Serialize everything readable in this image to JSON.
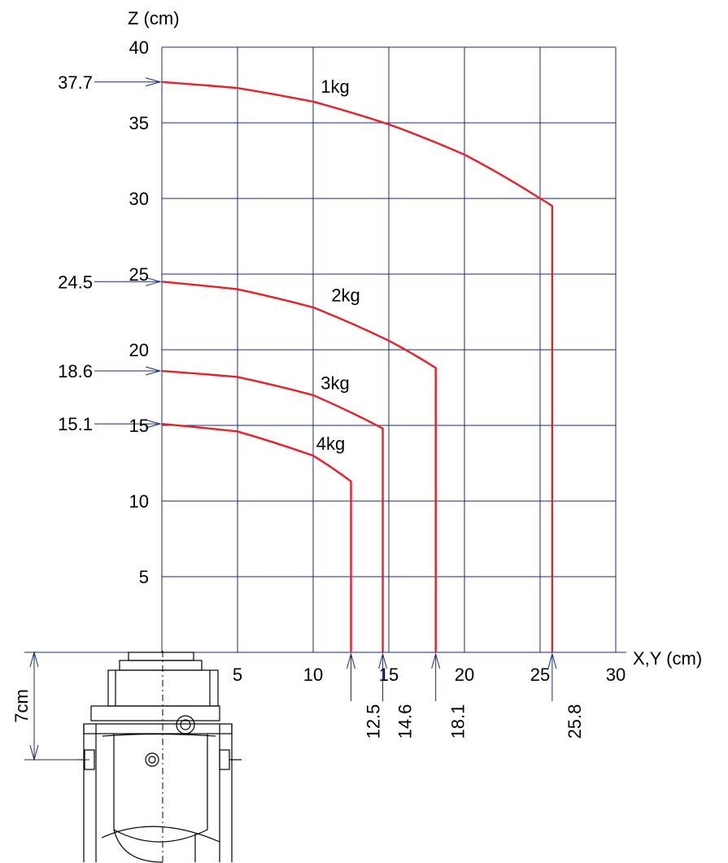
{
  "chart_data": {
    "type": "line",
    "xlabel": "X,Y (cm)",
    "ylabel": "Z (cm)",
    "xlim": [
      0,
      30
    ],
    "ylim": [
      0,
      40
    ],
    "x_ticks": [
      "5",
      "10",
      "15",
      "20",
      "25",
      "30"
    ],
    "y_ticks": [
      "5",
      "10",
      "15",
      "20",
      "25",
      "30",
      "35",
      "40"
    ],
    "grid": true,
    "series": [
      {
        "name": "1kg",
        "z_max": 37.7,
        "z_max_label": "37.7",
        "x_max": 25.8,
        "x_max_label": "25.8",
        "z_at_x_max": 29.5,
        "points": [
          [
            0,
            37.7
          ],
          [
            5,
            37.3
          ],
          [
            10,
            36.4
          ],
          [
            15,
            34.9
          ],
          [
            20,
            32.9
          ],
          [
            25,
            30.0
          ],
          [
            25.8,
            29.5
          ],
          [
            25.8,
            0
          ]
        ]
      },
      {
        "name": "2kg",
        "z_max": 24.5,
        "z_max_label": "24.5",
        "x_max": 18.1,
        "x_max_label": "18.1",
        "z_at_x_max": 18.8,
        "points": [
          [
            0,
            24.5
          ],
          [
            5,
            24.0
          ],
          [
            10,
            22.8
          ],
          [
            15,
            20.6
          ],
          [
            18.1,
            18.8
          ],
          [
            18.1,
            0
          ]
        ]
      },
      {
        "name": "3kg",
        "z_max": 18.6,
        "z_max_label": "18.6",
        "x_max": 14.6,
        "x_max_label": "14.6",
        "z_at_x_max": 14.8,
        "points": [
          [
            0,
            18.6
          ],
          [
            5,
            18.2
          ],
          [
            10,
            17.0
          ],
          [
            14.6,
            14.8
          ],
          [
            14.6,
            0
          ]
        ]
      },
      {
        "name": "4kg",
        "z_max": 15.1,
        "z_max_label": "15.1",
        "x_max": 12.5,
        "x_max_label": "12.5",
        "z_at_x_max": 11.3,
        "points": [
          [
            0,
            15.1
          ],
          [
            5,
            14.6
          ],
          [
            10,
            13.0
          ],
          [
            12.5,
            11.3
          ],
          [
            12.5,
            0
          ]
        ]
      }
    ],
    "base_dimension": {
      "value": 7,
      "label": "7cm"
    }
  },
  "colors": {
    "grid": "#1a2a7a",
    "curve": "#e8202a",
    "dimension": "#1a2a7a",
    "text": "#000000"
  }
}
